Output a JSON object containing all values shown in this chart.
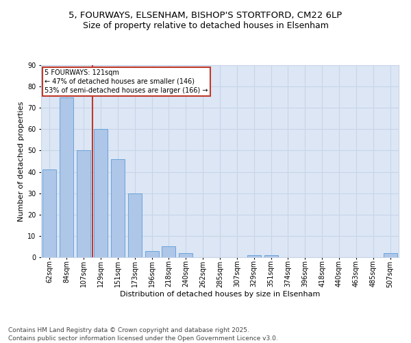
{
  "title1": "5, FOURWAYS, ELSENHAM, BISHOP'S STORTFORD, CM22 6LP",
  "title2": "Size of property relative to detached houses in Elsenham",
  "xlabel": "Distribution of detached houses by size in Elsenham",
  "ylabel": "Number of detached properties",
  "categories": [
    "62sqm",
    "84sqm",
    "107sqm",
    "129sqm",
    "151sqm",
    "173sqm",
    "196sqm",
    "218sqm",
    "240sqm",
    "262sqm",
    "285sqm",
    "307sqm",
    "329sqm",
    "351sqm",
    "374sqm",
    "396sqm",
    "418sqm",
    "440sqm",
    "463sqm",
    "485sqm",
    "507sqm"
  ],
  "values": [
    41,
    75,
    50,
    60,
    46,
    30,
    3,
    5,
    2,
    0,
    0,
    0,
    1,
    1,
    0,
    0,
    0,
    0,
    0,
    0,
    2
  ],
  "bar_color": "#aec6e8",
  "bar_edge_color": "#5b9bd5",
  "vline_x": 2.5,
  "vline_color": "#c0392b",
  "annotation_text": "5 FOURWAYS: 121sqm\n← 47% of detached houses are smaller (146)\n53% of semi-detached houses are larger (166) →",
  "annotation_box_color": "white",
  "annotation_box_edge": "#c0392b",
  "ylim": [
    0,
    90
  ],
  "yticks": [
    0,
    10,
    20,
    30,
    40,
    50,
    60,
    70,
    80,
    90
  ],
  "grid_color": "#c8d4e8",
  "background_color": "#dce6f5",
  "footer": "Contains HM Land Registry data © Crown copyright and database right 2025.\nContains public sector information licensed under the Open Government Licence v3.0.",
  "title_fontsize": 9.5,
  "subtitle_fontsize": 9,
  "axis_label_fontsize": 8,
  "tick_fontsize": 7,
  "footer_fontsize": 6.5
}
